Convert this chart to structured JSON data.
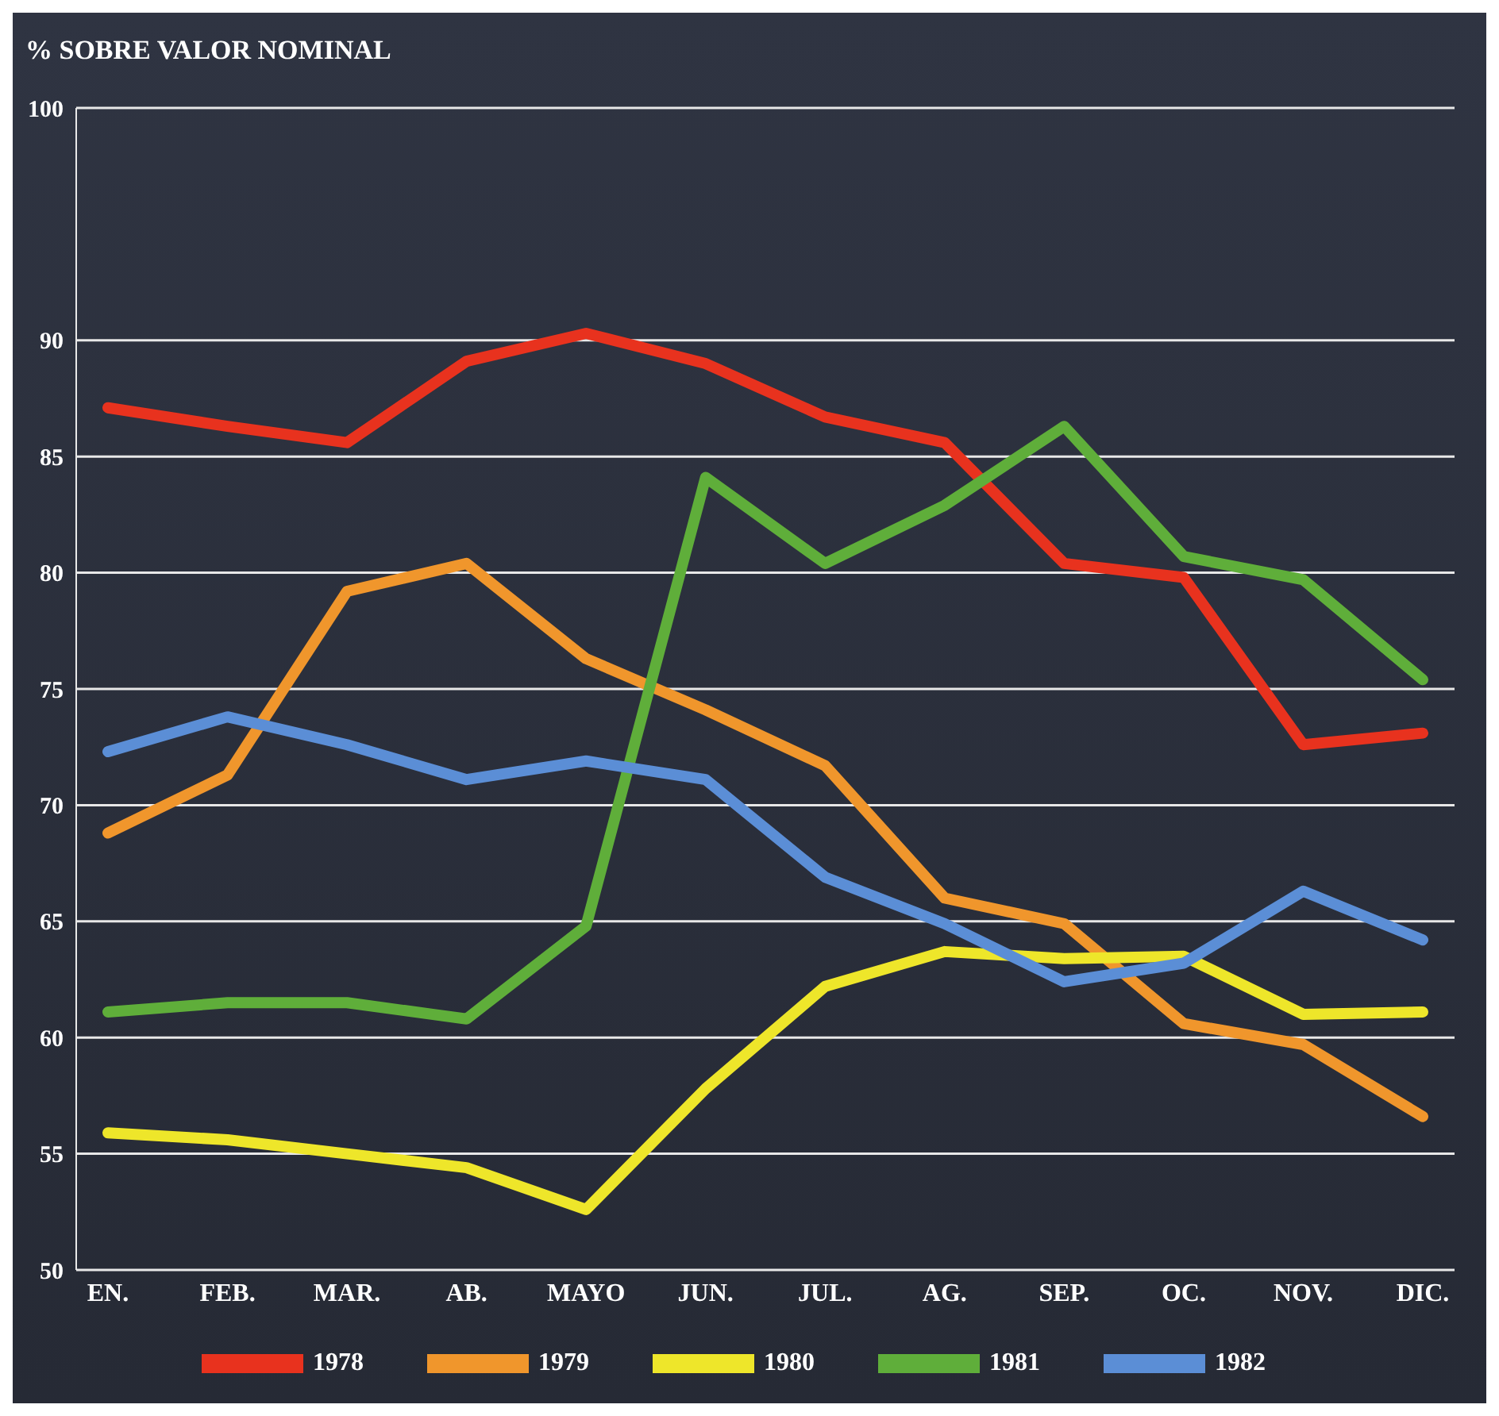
{
  "chart_data": {
    "type": "line",
    "title": "% SOBRE VALOR NOMINAL",
    "categories": [
      "EN.",
      "FEB.",
      "MAR.",
      "AB.",
      "MAYO",
      "JUN.",
      "JUL.",
      "AG.",
      "SEP.",
      "OC.",
      "NOV.",
      "DIC."
    ],
    "series": [
      {
        "name": "1978",
        "color": "#e8321e",
        "values": [
          87.1,
          86.3,
          85.6,
          89.1,
          90.3,
          89,
          86.7,
          85.6,
          80.4,
          79.8,
          72.6,
          73.1
        ]
      },
      {
        "name": "1979",
        "color": "#f0962c",
        "values": [
          68.8,
          71.3,
          79.2,
          80.4,
          76.3,
          74.1,
          71.7,
          66,
          64.9,
          60.6,
          59.7,
          56.6
        ]
      },
      {
        "name": "1980",
        "color": "#eee62a",
        "values": [
          55.9,
          55.6,
          55,
          54.4,
          52.6,
          57.8,
          62.2,
          63.7,
          63.4,
          63.5,
          61,
          61.1
        ]
      },
      {
        "name": "1981",
        "color": "#5fae3a",
        "values": [
          61.1,
          61.5,
          61.5,
          60.8,
          64.8,
          84.1,
          80.4,
          82.9,
          86.3,
          80.7,
          79.7,
          75.4
        ]
      },
      {
        "name": "1982",
        "color": "#5b8ed6",
        "values": [
          72.3,
          73.8,
          72.6,
          71.1,
          71.9,
          71.1,
          66.9,
          64.9,
          62.4,
          63.2,
          66.3,
          64.2
        ]
      }
    ],
    "ylim": [
      50,
      100
    ],
    "yticks": [
      50,
      55,
      60,
      65,
      70,
      75,
      80,
      85,
      90,
      100
    ],
    "grid": "y",
    "legend": "bottom",
    "marker": "none",
    "line_style": "solid"
  }
}
